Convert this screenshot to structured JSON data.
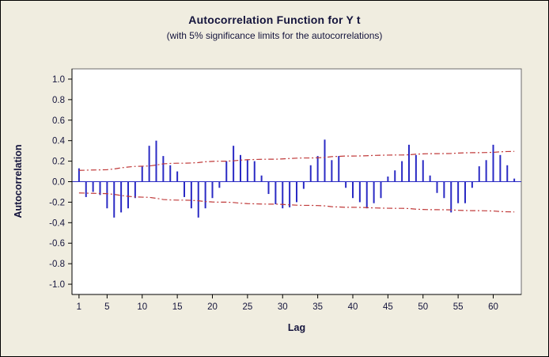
{
  "window": {
    "background_color": "#F0EDE0",
    "border_color": "#000000",
    "plot_background_color": "#FFFFFF"
  },
  "chart_data": {
    "type": "bar",
    "title": "Autocorrelation Function for Y t",
    "subtitle": "(with 5% significance limits for the autocorrelations)",
    "xlabel": "Lag",
    "ylabel": "Autocorrelation",
    "ylim": [
      -1.1,
      1.1
    ],
    "xlim": [
      0,
      64
    ],
    "grid": false,
    "legend": false,
    "x_ticks": [
      1,
      5,
      10,
      15,
      20,
      25,
      30,
      35,
      40,
      45,
      50,
      55,
      60
    ],
    "y_tick_labels": [
      "1.0",
      "0.8",
      "0.6",
      "0.4",
      "0.2",
      "0.0",
      "-0.2",
      "-0.4",
      "-0.6",
      "-0.8",
      "-1.0"
    ],
    "lag_range": [
      1,
      63
    ],
    "acf": [
      0.13,
      -0.15,
      -0.1,
      -0.13,
      -0.26,
      -0.35,
      -0.3,
      -0.26,
      -0.16,
      0.15,
      0.35,
      0.4,
      0.25,
      0.16,
      0.1,
      -0.15,
      -0.26,
      -0.35,
      -0.26,
      -0.16,
      -0.06,
      0.2,
      0.35,
      0.26,
      0.21,
      0.2,
      0.06,
      -0.12,
      -0.22,
      -0.26,
      -0.25,
      -0.2,
      -0.07,
      0.16,
      0.25,
      0.41,
      0.21,
      0.25,
      -0.06,
      -0.16,
      -0.2,
      -0.26,
      -0.21,
      -0.16,
      0.05,
      0.11,
      0.2,
      0.36,
      0.26,
      0.21,
      0.06,
      -0.11,
      -0.16,
      -0.3,
      -0.21,
      -0.21,
      -0.06,
      0.15,
      0.21,
      0.36,
      0.26,
      0.16,
      0.03
    ],
    "significance_limits_upper": [
      0.11,
      0.112,
      0.114,
      0.115,
      0.117,
      0.124,
      0.135,
      0.143,
      0.149,
      0.151,
      0.153,
      0.162,
      0.174,
      0.178,
      0.18,
      0.18,
      0.182,
      0.186,
      0.194,
      0.198,
      0.2,
      0.2,
      0.203,
      0.21,
      0.214,
      0.216,
      0.218,
      0.219,
      0.219,
      0.222,
      0.226,
      0.229,
      0.231,
      0.231,
      0.233,
      0.236,
      0.244,
      0.247,
      0.25,
      0.25,
      0.251,
      0.253,
      0.256,
      0.258,
      0.259,
      0.26,
      0.26,
      0.262,
      0.268,
      0.271,
      0.273,
      0.273,
      0.274,
      0.275,
      0.279,
      0.281,
      0.283,
      0.283,
      0.284,
      0.286,
      0.291,
      0.294,
      0.295
    ],
    "significance_limits_lower_is_mirror": true,
    "colors": {
      "bar": "#2A2AC4",
      "zero_line": "#2A2AC4",
      "significance_limit": "#C03A3A",
      "axis": "#000000",
      "tick_text": "#14143C",
      "plot_frame": "#6B6B6B"
    }
  }
}
